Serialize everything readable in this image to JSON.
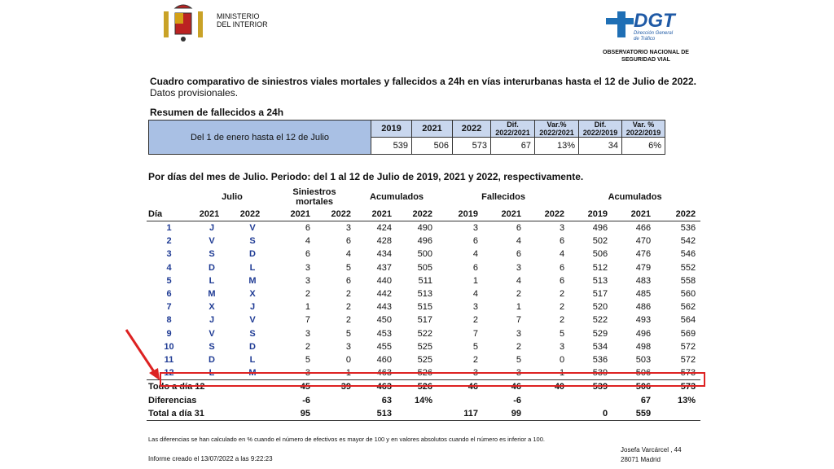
{
  "header": {
    "ministry": [
      "MINISTERIO",
      "DEL INTERIOR"
    ],
    "dgt": {
      "logo": "DGT",
      "name": "Dirección General de Tráfico",
      "observatory": [
        "OBSERVATORIO NACIONAL DE",
        "SEGURIDAD VIAL"
      ]
    }
  },
  "title": "Cuadro comparativo de siniestros viales mortales y fallecidos a 24h en vías interurbanas hasta el 12 de Julio de 2022.",
  "subtitle": "Datos provisionales.",
  "summary": {
    "title": "Resumen de fallecidos a 24h",
    "label": "Del 1 de enero hasta el 12 de Julio",
    "headers": [
      [
        "2019"
      ],
      [
        "2021"
      ],
      [
        "2022"
      ],
      [
        "Dif.",
        "2022/2021"
      ],
      [
        "Var.%",
        "2022/2021"
      ],
      [
        "Dif.",
        "2022/2019"
      ],
      [
        "Var. %",
        "2022/2019"
      ]
    ],
    "values": [
      539,
      506,
      573,
      67,
      "13%",
      34,
      "6%"
    ]
  },
  "daily": {
    "title": "Por días del mes de Julio. Periodo: del 1 al 12 de Julio de 2019, 2021 y 2022, respectivamente.",
    "group_headers": [
      {
        "label": [
          "Julio"
        ],
        "span": 2
      },
      {
        "label": [
          "Siniestros",
          "mortales"
        ],
        "span": 2
      },
      {
        "label": [
          "Acumulados"
        ],
        "span": 2
      },
      {
        "label": [
          "Fallecidos"
        ],
        "span": 3
      },
      {
        "label": [
          "Acumulados"
        ],
        "span": 3
      }
    ],
    "subheaders": [
      "Día",
      "2021",
      "2022",
      "2021",
      "2022",
      "2021",
      "2022",
      "2019",
      "2021",
      "2022",
      "2019",
      "2021",
      "2022"
    ],
    "rows": [
      [
        1,
        "J",
        "V",
        6,
        3,
        424,
        490,
        3,
        6,
        3,
        496,
        466,
        536
      ],
      [
        2,
        "V",
        "S",
        4,
        6,
        428,
        496,
        6,
        4,
        6,
        502,
        470,
        542
      ],
      [
        3,
        "S",
        "D",
        6,
        4,
        434,
        500,
        4,
        6,
        4,
        506,
        476,
        546
      ],
      [
        4,
        "D",
        "L",
        3,
        5,
        437,
        505,
        6,
        3,
        6,
        512,
        479,
        552
      ],
      [
        5,
        "L",
        "M",
        3,
        6,
        440,
        511,
        1,
        4,
        6,
        513,
        483,
        558
      ],
      [
        6,
        "M",
        "X",
        2,
        2,
        442,
        513,
        4,
        2,
        2,
        517,
        485,
        560
      ],
      [
        7,
        "X",
        "J",
        1,
        2,
        443,
        515,
        3,
        1,
        2,
        520,
        486,
        562
      ],
      [
        8,
        "J",
        "V",
        7,
        2,
        450,
        517,
        2,
        7,
        2,
        522,
        493,
        564
      ],
      [
        9,
        "V",
        "S",
        3,
        5,
        453,
        522,
        7,
        3,
        5,
        529,
        496,
        569
      ],
      [
        10,
        "S",
        "D",
        2,
        3,
        455,
        525,
        5,
        2,
        3,
        534,
        498,
        572
      ],
      [
        11,
        "D",
        "L",
        5,
        0,
        460,
        525,
        2,
        5,
        0,
        536,
        503,
        572
      ],
      [
        12,
        "L",
        "M",
        3,
        1,
        463,
        526,
        3,
        3,
        1,
        539,
        506,
        573
      ]
    ],
    "totals": [
      {
        "label": "Todo a día 12",
        "values": [
          45,
          39,
          463,
          526,
          46,
          46,
          40,
          539,
          506,
          573
        ]
      },
      {
        "label": "Diferencias",
        "values": [
          -6,
          null,
          63,
          "14%",
          null,
          -6,
          null,
          null,
          67,
          "13%"
        ]
      },
      {
        "label": "Total a día 31",
        "values": [
          95,
          null,
          513,
          null,
          117,
          99,
          null,
          0,
          559,
          null
        ]
      }
    ]
  },
  "footer": {
    "note": "Las diferencias se han calculado en % cuando el número de efectivos es mayor de 100 y en valores absolutos cuando el número es inferior a 100.",
    "created": "Informe creado el 13/07/2022 a las  9:22:23",
    "address": [
      "Josefa Varcárcel , 44",
      "28071 Madrid"
    ]
  }
}
